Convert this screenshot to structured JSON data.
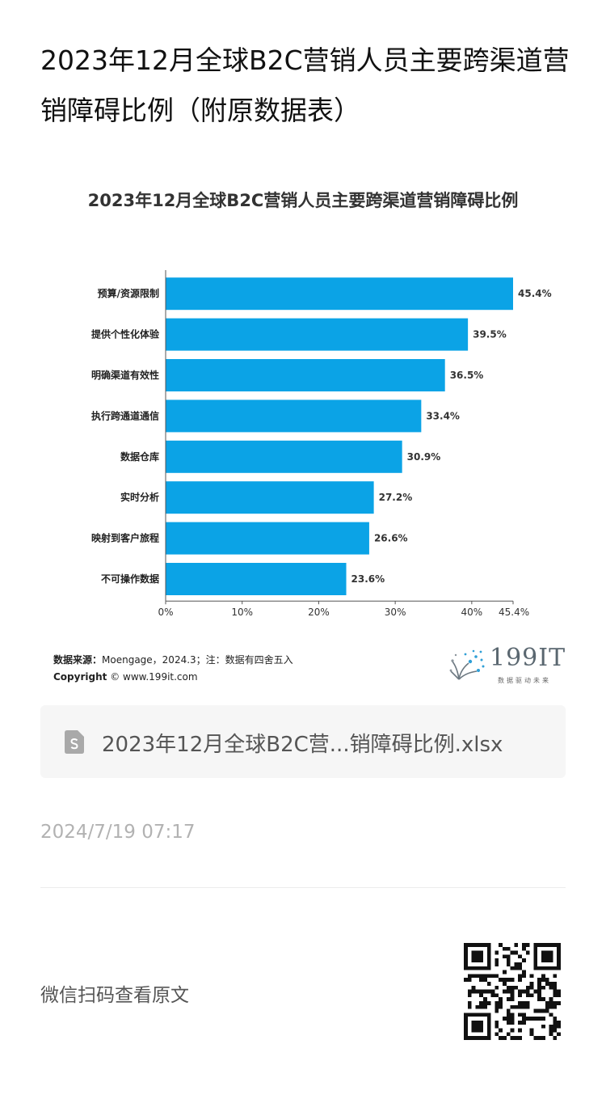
{
  "article": {
    "title": "2023年12月全球B2C营销人员主要跨渠道营销障碍比例（附原数据表）",
    "timestamp": "2024/7/19 07:17",
    "scan_prompt": "微信扫码查看原文"
  },
  "chart_data": {
    "type": "bar",
    "orientation": "horizontal",
    "title": "2023年12月全球B2C营销人员主要跨渠道营销障碍比例",
    "categories": [
      "预算/资源限制",
      "提供个性化体验",
      "明确渠道有效性",
      "执行跨通道通信",
      "数据仓库",
      "实时分析",
      "映射到客户旅程",
      "不可操作数据"
    ],
    "values": [
      45.4,
      39.5,
      36.5,
      33.4,
      30.9,
      27.2,
      26.6,
      23.6
    ],
    "value_labels": [
      "45.4%",
      "39.5%",
      "36.5%",
      "33.4%",
      "30.9%",
      "27.2%",
      "26.6%",
      "23.6%"
    ],
    "xlim": [
      0,
      45.4
    ],
    "xticks": [
      0,
      10,
      20,
      30,
      40,
      45.4
    ],
    "xtick_labels": [
      "0%",
      "10%",
      "20%",
      "30%",
      "40%",
      "45.4%"
    ],
    "bar_color": "#0ba3e6",
    "grid": false,
    "legend": "none"
  },
  "source": {
    "label": "数据来源：",
    "text": "Moengage，2024.3；注：数据有四舍五入",
    "copyright_label": "Copyright",
    "copyright_text": "© www.199it.com"
  },
  "logo": {
    "text": "199IT",
    "subtitle": "数据驱动未来"
  },
  "attachment": {
    "icon": "spreadsheet-file-icon",
    "name": "2023年12月全球B2C营...销障碍比例.xlsx"
  },
  "qr_code": {
    "icon": "qr-code-icon"
  }
}
